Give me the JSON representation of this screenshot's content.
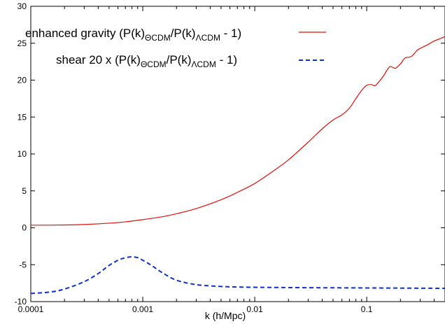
{
  "chart_data": {
    "type": "line",
    "xlabel": "k (h/Mpc)",
    "ylabel": "",
    "xscale": "log",
    "xlim": [
      0.0001,
      0.5
    ],
    "ylim": [
      -10,
      30
    ],
    "grid": false,
    "legend_position": "top-right",
    "x_ticks": [
      0.0001,
      0.001,
      0.01,
      0.1
    ],
    "x_tick_labels": [
      "0.0001",
      "0.001",
      "0.01",
      "0.1"
    ],
    "y_ticks": [
      -10,
      -5,
      0,
      5,
      10,
      15,
      20,
      25,
      30
    ],
    "y_tick_labels": [
      "-10",
      "-5",
      "0",
      "5",
      "10",
      "15",
      "20",
      "25",
      "30"
    ],
    "series": [
      {
        "name": "enhanced gravity (P(k)ΘCDM/P(k)ΛCDM - 1)",
        "legend": {
          "prefix": "enhanced gravity (P(k)",
          "sub1": "ΘCDM",
          "mid": "/P(k)",
          "sub2": "ΛCDM",
          "suffix": " - 1)"
        },
        "color": "#e01010",
        "dash": "solid",
        "x": [
          0.0001,
          0.0002,
          0.0003,
          0.0005,
          0.0007,
          0.001,
          0.0015,
          0.002,
          0.003,
          0.005,
          0.007,
          0.01,
          0.015,
          0.02,
          0.03,
          0.04,
          0.05,
          0.06,
          0.07,
          0.08,
          0.09,
          0.1,
          0.11,
          0.12,
          0.14,
          0.16,
          0.18,
          0.2,
          0.22,
          0.25,
          0.28,
          0.3,
          0.33,
          0.36,
          0.4,
          0.45,
          0.5
        ],
        "y": [
          0.35,
          0.38,
          0.45,
          0.62,
          0.8,
          1.1,
          1.5,
          1.9,
          2.6,
          3.8,
          4.8,
          6.0,
          7.8,
          9.2,
          11.6,
          13.4,
          14.6,
          15.3,
          16.2,
          17.5,
          18.6,
          19.3,
          19.4,
          19.3,
          20.5,
          21.8,
          21.6,
          22.2,
          23.0,
          23.2,
          24.0,
          24.3,
          24.6,
          24.9,
          25.3,
          25.6,
          25.9
        ]
      },
      {
        "name": "shear 20 x (P(k)ΘCDM/P(k)ΛCDM - 1)",
        "legend": {
          "prefix": "shear  20 x (P(k)",
          "sub1": "ΘCDM",
          "mid": "/P(k)",
          "sub2": "ΛCDM",
          "suffix": " - 1)"
        },
        "color": "#1030d0",
        "dash": "dashed",
        "x": [
          0.0001,
          0.00015,
          0.0002,
          0.0003,
          0.0004,
          0.0005,
          0.0006,
          0.0007,
          0.0008,
          0.0009,
          0.001,
          0.0012,
          0.0015,
          0.002,
          0.003,
          0.005,
          0.007,
          0.01,
          0.02,
          0.05,
          0.1,
          0.2,
          0.5
        ],
        "y": [
          -8.9,
          -8.7,
          -8.3,
          -7.3,
          -6.2,
          -5.1,
          -4.4,
          -4.05,
          -3.95,
          -4.05,
          -4.4,
          -5.1,
          -6.1,
          -7.1,
          -7.7,
          -7.95,
          -8.02,
          -8.06,
          -8.1,
          -8.13,
          -8.15,
          -8.17,
          -8.2
        ]
      }
    ]
  }
}
